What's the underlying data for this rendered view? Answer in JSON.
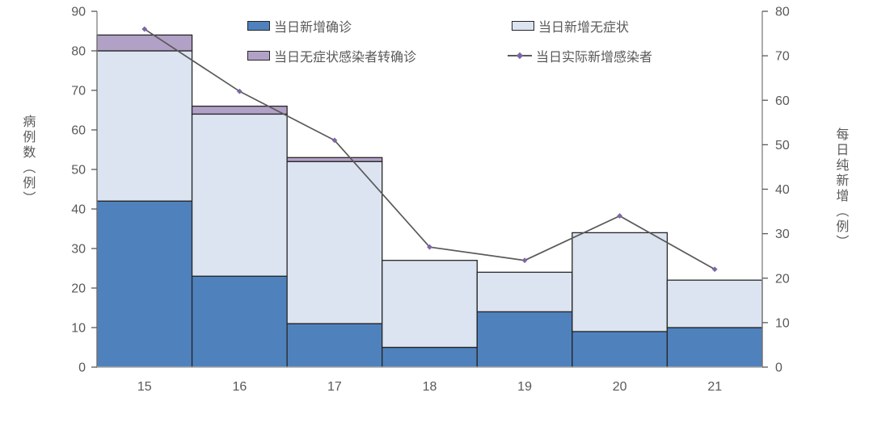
{
  "chart_data": {
    "type": "bar",
    "subtype": "stacked-bars-with-secondary-axis-line",
    "categories": [
      "15",
      "16",
      "17",
      "18",
      "19",
      "20",
      "21"
    ],
    "series": [
      {
        "name": "当日新增确诊",
        "type": "bar",
        "axis": "left",
        "color": "#4F81BD",
        "values": [
          42,
          23,
          11,
          5,
          14,
          9,
          10
        ]
      },
      {
        "name": "当日新增无症状",
        "type": "bar",
        "axis": "left",
        "color": "#DCE4F1",
        "values": [
          38,
          41,
          41,
          22,
          10,
          25,
          12
        ]
      },
      {
        "name": "当日无症状感染者转确诊",
        "type": "bar",
        "axis": "left",
        "color": "#B2A1C7",
        "values": [
          4,
          2,
          1,
          0,
          0,
          0,
          0
        ]
      },
      {
        "name": "当日实际新增感染者",
        "type": "line",
        "axis": "right",
        "color": "#595959",
        "marker_color": "#7C67A5",
        "values": [
          76,
          62,
          51,
          27,
          24,
          34,
          22
        ]
      }
    ],
    "stack_totals": [
      84,
      66,
      53,
      27,
      24,
      34,
      22
    ],
    "left_axis": {
      "title": "病例数（例）",
      "min": 0,
      "max": 90,
      "step": 10
    },
    "right_axis": {
      "title": "每日纯新增（例）",
      "min": 0,
      "max": 80,
      "step": 10
    },
    "x_axis": {
      "labels": [
        "15",
        "16",
        "17",
        "18",
        "19",
        "20",
        "21"
      ]
    },
    "legend": {
      "position": "top-inside",
      "columns": 2
    },
    "grid": "off",
    "colors": {
      "text": "#595959",
      "axis_line": "#808080",
      "bottom_axis_line": "#BFBFBF",
      "tick": "#595959",
      "bar_border": "#262626"
    }
  }
}
